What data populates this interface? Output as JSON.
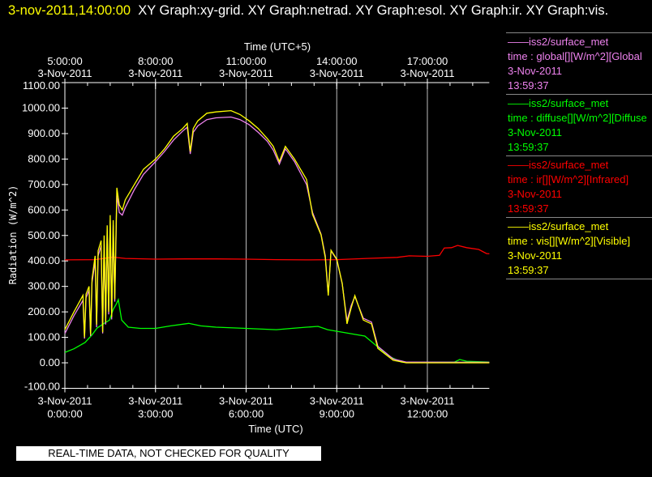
{
  "header": {
    "timestamp": "3-nov-2011,14:00:00",
    "graphs": "XY Graph:xy-grid.  XY Graph:netrad.  XY Graph:esol.  XY Graph:ir.  XY Graph:vis."
  },
  "legend": [
    {
      "source": "——iss2/surface_met",
      "var": "time : global[][W/m^2][Global",
      "date": "3-Nov-2011",
      "time": "13:59:37",
      "color": "#ee82ee"
    },
    {
      "source": "——iss2/surface_met",
      "var": "time : diffuse[][W/m^2][Diffuse",
      "date": "3-Nov-2011",
      "time": "13:59:37",
      "color": "#00ff00"
    },
    {
      "source": "——iss2/surface_met",
      "var": "time : ir[][W/m^2][Infrared]",
      "date": "3-Nov-2011",
      "time": "13:59:37",
      "color": "#ff0000"
    },
    {
      "source": "——iss2/surface_met",
      "var": "time : vis[][W/m^2][Visible]",
      "date": "3-Nov-2011",
      "time": "13:59:37",
      "color": "#ffff00"
    }
  ],
  "footer": "REAL-TIME DATA, NOT CHECKED FOR QUALITY",
  "chart_data": {
    "type": "line",
    "xlabel": "Time (UTC)",
    "x2label": "Time (UTC+5)",
    "ylabel": "Radiation (W/m^2)",
    "xlim_hours_utc": [
      0,
      14.05
    ],
    "ylim": [
      -100,
      1100
    ],
    "yticks": [
      "1100.00",
      "1000.00",
      "900.00",
      "800.00",
      "700.00",
      "600.00",
      "500.00",
      "400.00",
      "300.00",
      "200.00",
      "100.00",
      "0.00",
      "-100.00"
    ],
    "xticks": [
      {
        "hour": 0,
        "date": "3-Nov-2011",
        "time": "0:00:00"
      },
      {
        "hour": 3,
        "date": "3-Nov-2011",
        "time": "3:00:00"
      },
      {
        "hour": 6,
        "date": "3-Nov-2011",
        "time": "6:00:00"
      },
      {
        "hour": 9,
        "date": "3-Nov-2011",
        "time": "9:00:00"
      },
      {
        "hour": 12,
        "date": "3-Nov-2011",
        "time": "12:00:00"
      }
    ],
    "x2ticks": [
      {
        "hour": 0,
        "date": "3-Nov-2011",
        "time": "5:00:00"
      },
      {
        "hour": 3,
        "date": "3-Nov-2011",
        "time": "8:00:00"
      },
      {
        "hour": 6,
        "date": "3-Nov-2011",
        "time": "11:00:00"
      },
      {
        "hour": 9,
        "date": "3-Nov-2011",
        "time": "14:00:00"
      },
      {
        "hour": 12,
        "date": "3-Nov-2011",
        "time": "17:00:00"
      }
    ],
    "grid": "vertical",
    "series": [
      {
        "name": "global",
        "color": "#ee82ee",
        "points": [
          [
            0,
            115
          ],
          [
            0.3,
            185
          ],
          [
            0.6,
            245
          ],
          [
            0.65,
            95
          ],
          [
            0.7,
            255
          ],
          [
            0.8,
            285
          ],
          [
            0.85,
            105
          ],
          [
            0.9,
            315
          ],
          [
            1.0,
            400
          ],
          [
            1.05,
            140
          ],
          [
            1.1,
            420
          ],
          [
            1.2,
            460
          ],
          [
            1.25,
            115
          ],
          [
            1.3,
            480
          ],
          [
            1.35,
            150
          ],
          [
            1.4,
            520
          ],
          [
            1.45,
            190
          ],
          [
            1.5,
            560
          ],
          [
            1.55,
            170
          ],
          [
            1.6,
            540
          ],
          [
            1.65,
            240
          ],
          [
            1.72,
            660
          ],
          [
            1.8,
            590
          ],
          [
            1.9,
            580
          ],
          [
            2.0,
            610
          ],
          [
            2.3,
            680
          ],
          [
            2.6,
            740
          ],
          [
            3.0,
            790
          ],
          [
            3.3,
            830
          ],
          [
            3.6,
            875
          ],
          [
            3.9,
            910
          ],
          [
            4.05,
            925
          ],
          [
            4.15,
            820
          ],
          [
            4.25,
            905
          ],
          [
            4.4,
            930
          ],
          [
            4.7,
            955
          ],
          [
            5.0,
            962
          ],
          [
            5.5,
            965
          ],
          [
            5.8,
            955
          ],
          [
            6.1,
            935
          ],
          [
            6.4,
            905
          ],
          [
            6.7,
            870
          ],
          [
            6.9,
            835
          ],
          [
            7.1,
            780
          ],
          [
            7.3,
            840
          ],
          [
            7.6,
            790
          ],
          [
            8.0,
            700
          ],
          [
            8.2,
            590
          ],
          [
            8.48,
            505
          ],
          [
            8.62,
            420
          ],
          [
            8.72,
            270
          ],
          [
            8.81,
            440
          ],
          [
            9.0,
            405
          ],
          [
            9.18,
            310
          ],
          [
            9.34,
            165
          ],
          [
            9.48,
            225
          ],
          [
            9.6,
            260
          ],
          [
            9.88,
            175
          ],
          [
            10.15,
            160
          ],
          [
            10.36,
            65
          ],
          [
            10.87,
            15
          ],
          [
            11.3,
            3
          ],
          [
            14.05,
            2
          ]
        ]
      },
      {
        "name": "diffuse",
        "color": "#00ff00",
        "points": [
          [
            0,
            41
          ],
          [
            0.3,
            55
          ],
          [
            0.67,
            80
          ],
          [
            0.9,
            110
          ],
          [
            1.07,
            137
          ],
          [
            1.3,
            155
          ],
          [
            1.48,
            168
          ],
          [
            1.6,
            210
          ],
          [
            1.7,
            230
          ],
          [
            1.77,
            248
          ],
          [
            1.88,
            168
          ],
          [
            2.1,
            140
          ],
          [
            2.5,
            135
          ],
          [
            3.0,
            135
          ],
          [
            3.5,
            145
          ],
          [
            4.1,
            155
          ],
          [
            4.5,
            145
          ],
          [
            5.0,
            140
          ],
          [
            6.0,
            135
          ],
          [
            7.0,
            130
          ],
          [
            7.5,
            135
          ],
          [
            8.0,
            140
          ],
          [
            8.38,
            143
          ],
          [
            8.7,
            130
          ],
          [
            9.13,
            121
          ],
          [
            9.93,
            105
          ],
          [
            10.25,
            73
          ],
          [
            10.74,
            25
          ],
          [
            11.14,
            3
          ],
          [
            12.9,
            3
          ],
          [
            13.07,
            13
          ],
          [
            13.3,
            6
          ],
          [
            14.05,
            3
          ]
        ]
      },
      {
        "name": "ir",
        "color": "#ff0000",
        "points": [
          [
            0,
            404
          ],
          [
            1.0,
            405
          ],
          [
            1.6,
            415
          ],
          [
            2.0,
            410
          ],
          [
            3.0,
            407
          ],
          [
            4.0,
            408
          ],
          [
            5.0,
            408
          ],
          [
            6.0,
            407
          ],
          [
            7.0,
            405
          ],
          [
            8.0,
            404
          ],
          [
            9.0,
            405
          ],
          [
            10.0,
            410
          ],
          [
            11.0,
            414
          ],
          [
            11.4,
            420
          ],
          [
            12.0,
            418
          ],
          [
            12.4,
            422
          ],
          [
            12.56,
            451
          ],
          [
            12.8,
            452
          ],
          [
            13.0,
            461
          ],
          [
            13.3,
            452
          ],
          [
            13.7,
            445
          ],
          [
            13.96,
            429
          ],
          [
            14.05,
            428
          ]
        ]
      },
      {
        "name": "vis",
        "color": "#ffff00",
        "points": [
          [
            0,
            130
          ],
          [
            0.3,
            200
          ],
          [
            0.6,
            265
          ],
          [
            0.65,
            100
          ],
          [
            0.7,
            270
          ],
          [
            0.8,
            300
          ],
          [
            0.85,
            110
          ],
          [
            0.9,
            330
          ],
          [
            1.0,
            420
          ],
          [
            1.05,
            150
          ],
          [
            1.1,
            440
          ],
          [
            1.2,
            480
          ],
          [
            1.25,
            120
          ],
          [
            1.3,
            500
          ],
          [
            1.35,
            160
          ],
          [
            1.4,
            540
          ],
          [
            1.45,
            200
          ],
          [
            1.5,
            580
          ],
          [
            1.55,
            180
          ],
          [
            1.6,
            560
          ],
          [
            1.65,
            250
          ],
          [
            1.72,
            687
          ],
          [
            1.8,
            620
          ],
          [
            1.9,
            600
          ],
          [
            2.0,
            640
          ],
          [
            2.3,
            700
          ],
          [
            2.6,
            760
          ],
          [
            3.0,
            800
          ],
          [
            3.3,
            840
          ],
          [
            3.6,
            890
          ],
          [
            3.9,
            920
          ],
          [
            4.05,
            940
          ],
          [
            4.15,
            830
          ],
          [
            4.25,
            920
          ],
          [
            4.4,
            950
          ],
          [
            4.7,
            980
          ],
          [
            5.0,
            985
          ],
          [
            5.5,
            990
          ],
          [
            5.8,
            975
          ],
          [
            6.1,
            950
          ],
          [
            6.4,
            920
          ],
          [
            6.7,
            880
          ],
          [
            6.9,
            850
          ],
          [
            7.1,
            790
          ],
          [
            7.3,
            850
          ],
          [
            7.6,
            800
          ],
          [
            8.0,
            720
          ],
          [
            8.2,
            582
          ],
          [
            8.48,
            502
          ],
          [
            8.62,
            413
          ],
          [
            8.72,
            264
          ],
          [
            8.81,
            442
          ],
          [
            9.0,
            407
          ],
          [
            9.18,
            312
          ],
          [
            9.34,
            153
          ],
          [
            9.48,
            216
          ],
          [
            9.6,
            264
          ],
          [
            9.88,
            168
          ],
          [
            10.15,
            153
          ],
          [
            10.36,
            57
          ],
          [
            10.87,
            10
          ],
          [
            11.3,
            0
          ],
          [
            14.05,
            0
          ]
        ]
      }
    ]
  }
}
